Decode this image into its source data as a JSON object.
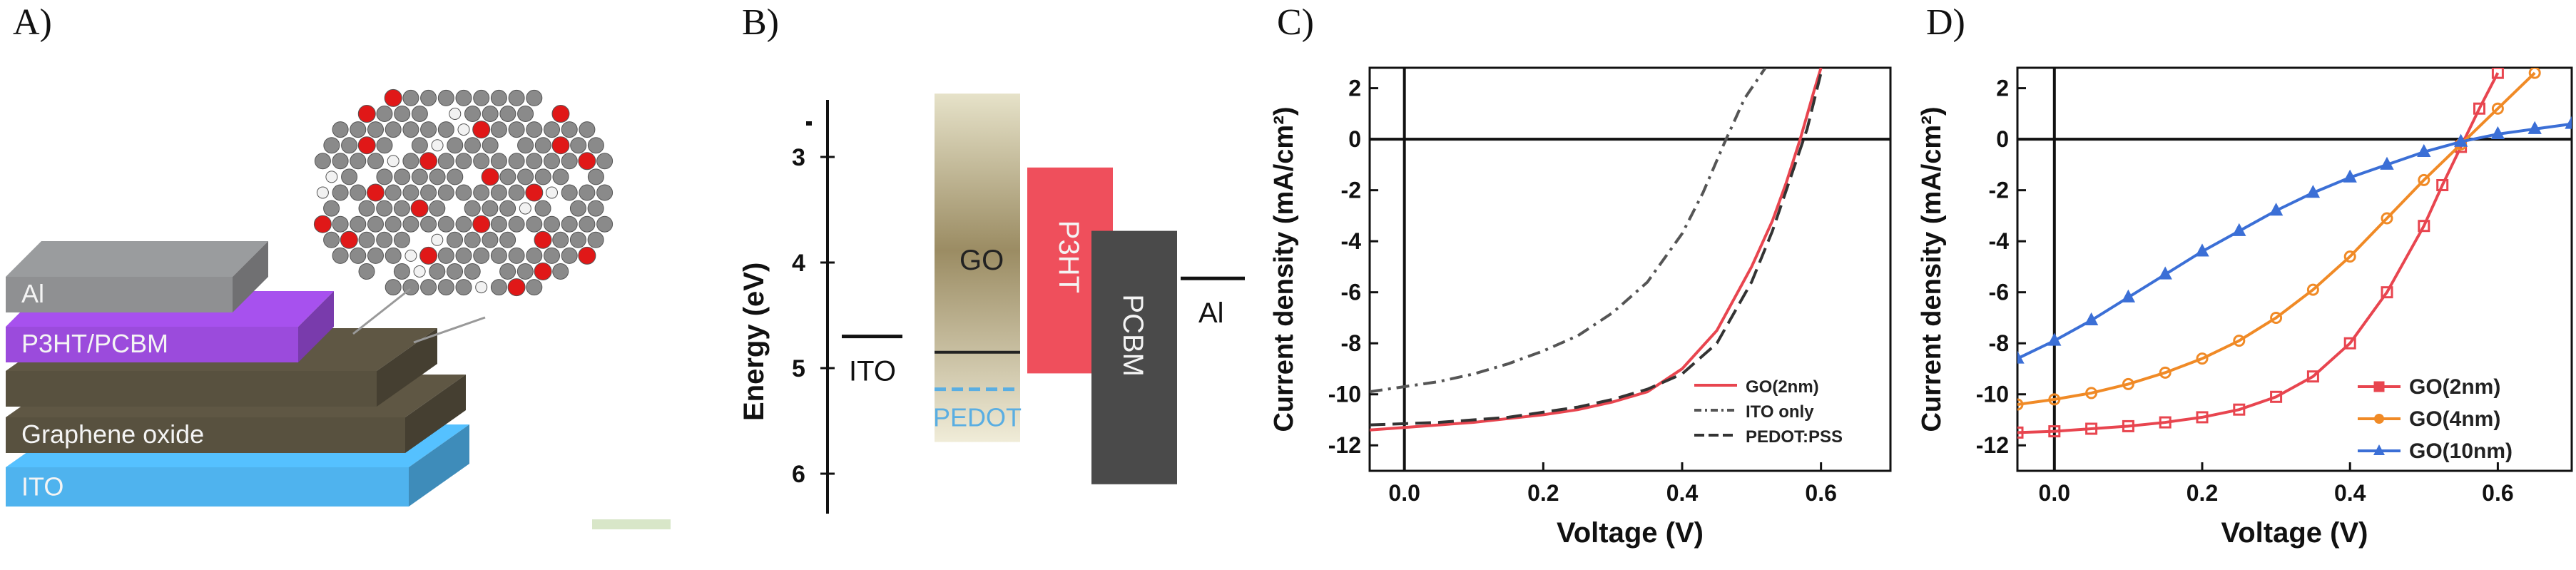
{
  "panels": {
    "A": {
      "label": "A)",
      "layers": [
        {
          "name": "Al",
          "color": "#8f9092"
        },
        {
          "name": "P3HT/PCBM",
          "color": "#9b4bdc"
        },
        {
          "name": "",
          "color": "#58513f"
        },
        {
          "name": "Graphene oxide",
          "color": "#58513f"
        },
        {
          "name": "ITO",
          "color": "#4fb3ee"
        }
      ]
    },
    "B": {
      "label": "B)",
      "ylabel": "Energy (eV)",
      "ticks": [
        "3",
        "4",
        "5",
        "6"
      ],
      "levels": {
        "ITO": {
          "label": "ITO",
          "value": 4.7
        },
        "GO": {
          "label": "GO",
          "top": 2.4,
          "bottom": 5.7,
          "line": 4.85,
          "color": "#9b8c63"
        },
        "PEDOT": {
          "label": "PEDOT",
          "value": 5.2,
          "color": "#5aaee2"
        },
        "P3HT": {
          "label": "P3HT",
          "top": 3.1,
          "bottom": 5.05,
          "color": "#ef4f5c"
        },
        "PCBM": {
          "label": "PCBM",
          "top": 3.7,
          "bottom": 6.1,
          "color": "#4a4a4a"
        },
        "Al": {
          "label": "Al",
          "value": 4.15
        }
      }
    }
  },
  "chart_data": [
    {
      "panel": "C)",
      "type": "line",
      "xlabel": "Voltage (V)",
      "ylabel": "Current density (mA/cm²)",
      "xlim": [
        -0.05,
        0.7
      ],
      "ylim": [
        -13,
        2.8
      ],
      "xticks": [
        "0.0",
        "0.2",
        "0.4",
        "0.6"
      ],
      "yticks": [
        "2",
        "0",
        "-2",
        "-4",
        "-6",
        "-8",
        "-10",
        "-12"
      ],
      "legend_position": "bottom-right",
      "series": [
        {
          "name": "GO(2nm)",
          "color": "#e8454f",
          "style": "solid",
          "x": [
            -0.05,
            0.0,
            0.05,
            0.1,
            0.15,
            0.2,
            0.25,
            0.3,
            0.35,
            0.4,
            0.45,
            0.5,
            0.53,
            0.55,
            0.57,
            0.59,
            0.6
          ],
          "y": [
            -11.4,
            -11.3,
            -11.2,
            -11.1,
            -10.95,
            -10.8,
            -10.6,
            -10.3,
            -9.9,
            -9.0,
            -7.5,
            -5.0,
            -3.2,
            -1.7,
            0.0,
            1.9,
            2.8
          ]
        },
        {
          "name": "ITO only",
          "color": "#555555",
          "style": "dashdot",
          "x": [
            -0.05,
            0.0,
            0.05,
            0.1,
            0.15,
            0.2,
            0.25,
            0.3,
            0.35,
            0.4,
            0.43,
            0.46,
            0.49,
            0.52
          ],
          "y": [
            -9.9,
            -9.7,
            -9.5,
            -9.2,
            -8.8,
            -8.3,
            -7.7,
            -6.8,
            -5.6,
            -3.7,
            -2.1,
            -0.2,
            1.6,
            2.8
          ]
        },
        {
          "name": "PEDOT:PSS",
          "color": "#333333",
          "style": "dashed",
          "x": [
            -0.05,
            0.0,
            0.05,
            0.1,
            0.15,
            0.2,
            0.25,
            0.3,
            0.35,
            0.4,
            0.45,
            0.5,
            0.53,
            0.56,
            0.58,
            0.6
          ],
          "y": [
            -11.2,
            -11.15,
            -11.1,
            -11.0,
            -10.9,
            -10.7,
            -10.5,
            -10.2,
            -9.8,
            -9.2,
            -8.0,
            -5.6,
            -3.6,
            -1.2,
            0.4,
            2.6
          ]
        }
      ]
    },
    {
      "panel": "D)",
      "type": "line",
      "xlabel": "Voltage (V)",
      "ylabel": "Current density (mA/cm²)",
      "xlim": [
        -0.05,
        0.7
      ],
      "ylim": [
        -13,
        2.8
      ],
      "xticks": [
        "0.0",
        "0.2",
        "0.4",
        "0.6"
      ],
      "yticks": [
        "2",
        "0",
        "-2",
        "-4",
        "-6",
        "-8",
        "-10",
        "-12"
      ],
      "legend_position": "bottom-right",
      "series": [
        {
          "name": "GO(2nm)",
          "color": "#e8454f",
          "marker": "square",
          "x": [
            -0.05,
            0.0,
            0.05,
            0.1,
            0.15,
            0.2,
            0.25,
            0.3,
            0.35,
            0.4,
            0.45,
            0.5,
            0.525,
            0.55,
            0.575,
            0.6
          ],
          "y": [
            -11.5,
            -11.45,
            -11.35,
            -11.25,
            -11.1,
            -10.9,
            -10.6,
            -10.1,
            -9.3,
            -8.0,
            -6.0,
            -3.4,
            -1.8,
            -0.3,
            1.2,
            2.6
          ]
        },
        {
          "name": "GO(4nm)",
          "color": "#f08a26",
          "marker": "circle",
          "x": [
            -0.05,
            0.0,
            0.05,
            0.1,
            0.15,
            0.2,
            0.25,
            0.3,
            0.35,
            0.4,
            0.45,
            0.5,
            0.55,
            0.6,
            0.65
          ],
          "y": [
            -10.4,
            -10.2,
            -9.95,
            -9.6,
            -9.15,
            -8.6,
            -7.9,
            -7.0,
            -5.9,
            -4.6,
            -3.1,
            -1.6,
            -0.2,
            1.2,
            2.6
          ]
        },
        {
          "name": "GO(10nm)",
          "color": "#3b6fd6",
          "marker": "triangle",
          "x": [
            -0.05,
            0.0,
            0.05,
            0.1,
            0.15,
            0.2,
            0.25,
            0.3,
            0.35,
            0.4,
            0.45,
            0.5,
            0.55,
            0.6,
            0.65,
            0.7
          ],
          "y": [
            -8.6,
            -7.9,
            -7.1,
            -6.2,
            -5.3,
            -4.4,
            -3.6,
            -2.8,
            -2.1,
            -1.5,
            -1.0,
            -0.5,
            -0.1,
            0.2,
            0.4,
            0.6
          ]
        }
      ]
    }
  ]
}
